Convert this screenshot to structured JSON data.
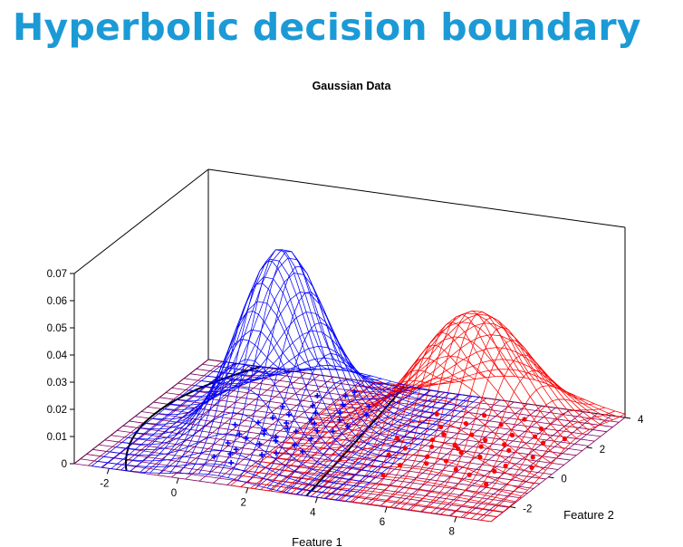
{
  "slide": {
    "title": "Hyperbolic decision boundary"
  },
  "chart_data": {
    "type": "surface3d",
    "title": "Gaussian Data",
    "xlabel": "Feature 1",
    "ylabel": "Feature 2",
    "xlim": [
      -3,
      9
    ],
    "ylim": [
      -3,
      4
    ],
    "zlim": [
      0,
      0.07
    ],
    "x_ticks": [
      -2,
      0,
      2,
      4,
      6,
      8
    ],
    "y_ticks": [
      -2,
      0,
      2,
      4
    ],
    "z_ticks": [
      0,
      0.01,
      0.02,
      0.03,
      0.04,
      0.05,
      0.06,
      0.07
    ],
    "z_tick_labels": [
      "0",
      "0.01",
      "0.02",
      "0.03",
      "0.04",
      "0.05",
      "0.06",
      "0.07"
    ],
    "series": [
      {
        "marker": "+",
        "color": "#0000ff",
        "gaussian": {
          "mean": [
            1,
            0.5
          ],
          "sigma": [
            1.0,
            1.4
          ],
          "peak": 0.067
        },
        "samples": [
          [
            0.2,
            -1.5
          ],
          [
            0.8,
            -1.7
          ],
          [
            0.5,
            -1.2
          ],
          [
            1.3,
            -1.0
          ],
          [
            0.1,
            -0.6
          ],
          [
            0.9,
            -0.4
          ],
          [
            1.6,
            -0.8
          ],
          [
            0.4,
            -0.2
          ],
          [
            1.1,
            0.1
          ],
          [
            1.8,
            -0.2
          ],
          [
            0.6,
            0.4
          ],
          [
            1.4,
            0.6
          ],
          [
            2.0,
            0.3
          ],
          [
            0.2,
            0.8
          ],
          [
            0.9,
            1.0
          ],
          [
            1.6,
            1.2
          ],
          [
            2.3,
            0.9
          ],
          [
            0.7,
            1.5
          ],
          [
            1.3,
            1.8
          ],
          [
            2.1,
            1.6
          ],
          [
            1.0,
            2.2
          ],
          [
            1.7,
            2.5
          ],
          [
            0.3,
            1.9
          ],
          [
            2.5,
            1.3
          ],
          [
            1.2,
            -0.1
          ],
          [
            0.1,
            0.0
          ],
          [
            1.9,
            0.8
          ],
          [
            0.8,
            2.8
          ],
          [
            1.5,
            3.0
          ],
          [
            2.6,
            2.1
          ],
          [
            -0.3,
            0.5
          ],
          [
            0.5,
            -0.9
          ],
          [
            1.1,
            0.7
          ],
          [
            2.2,
            -0.5
          ],
          [
            1.4,
            1.4
          ],
          [
            0.4,
            1.2
          ],
          [
            1.9,
            2.0
          ],
          [
            0.7,
            0.2
          ],
          [
            2.4,
            2.6
          ],
          [
            1.6,
            3.3
          ]
        ]
      },
      {
        "marker": "dot",
        "color": "#ff0000",
        "gaussian": {
          "mean": [
            6,
            1.5
          ],
          "sigma": [
            1.5,
            1.4
          ],
          "peak": 0.047
        },
        "samples": [
          [
            4.1,
            1.0
          ],
          [
            4.6,
            0.5
          ],
          [
            5.0,
            1.2
          ],
          [
            5.4,
            0.2
          ],
          [
            5.9,
            0.9
          ],
          [
            6.3,
            1.6
          ],
          [
            6.7,
            0.6
          ],
          [
            7.2,
            1.2
          ],
          [
            7.6,
            0.3
          ],
          [
            8.0,
            1.0
          ],
          [
            4.8,
            2.0
          ],
          [
            5.3,
            2.4
          ],
          [
            5.8,
            1.8
          ],
          [
            6.2,
            2.6
          ],
          [
            6.8,
            2.1
          ],
          [
            7.3,
            2.7
          ],
          [
            7.8,
            1.9
          ],
          [
            4.4,
            0.0
          ],
          [
            5.0,
            -0.5
          ],
          [
            5.6,
            -0.2
          ],
          [
            6.0,
            0.1
          ],
          [
            6.5,
            -0.3
          ],
          [
            7.0,
            -0.5
          ],
          [
            7.5,
            -0.1
          ],
          [
            8.3,
            0.4
          ],
          [
            5.1,
            1.6
          ],
          [
            5.7,
            1.1
          ],
          [
            6.4,
            1.2
          ],
          [
            6.9,
            1.5
          ],
          [
            7.4,
            2.2
          ],
          [
            4.3,
            2.7
          ],
          [
            5.5,
            3.0
          ],
          [
            8.2,
            2.3
          ],
          [
            6.1,
            0.7
          ],
          [
            4.9,
            -1.2
          ],
          [
            6.6,
            3.1
          ],
          [
            7.7,
            -0.9
          ],
          [
            5.2,
            0.8
          ]
        ]
      }
    ],
    "colors": {
      "blue_surface": "#0000ff",
      "red_surface": "#ff0000",
      "floor_grid": "#800060",
      "boundary": "#000000"
    },
    "decision_boundary": "hyperbola",
    "grid": true
  }
}
